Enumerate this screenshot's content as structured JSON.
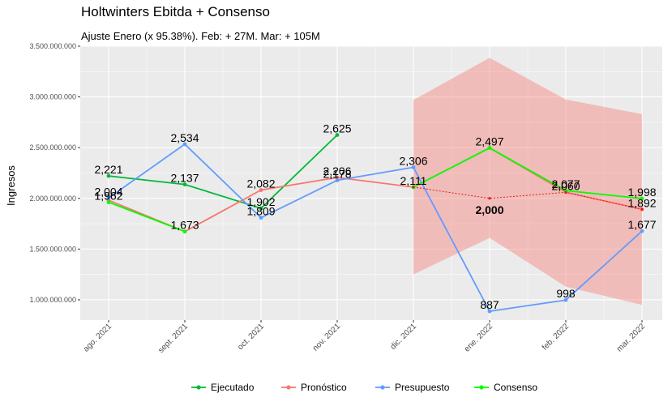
{
  "chart_data": {
    "type": "line",
    "title": "Holtwinters Ebitda + Consenso",
    "subtitle": "Ajuste Enero (x 95.38%). Feb: + 27M. Mar: + 105M",
    "ylabel": "Ingresos",
    "xlabel": "",
    "categories": [
      "ago. 2021",
      "sept. 2021",
      "oct. 2021",
      "nov. 2021",
      "dic. 2021",
      "ene. 2022",
      "feb. 2022",
      "mar. 2022"
    ],
    "ylim": [
      800000000,
      3500000000
    ],
    "yticks": [
      1000000000,
      1500000000,
      2000000000,
      2500000000,
      3000000000,
      3500000000
    ],
    "ytick_labels": [
      "1.000.000.000",
      "1.500.000.000",
      "2.000.000.000",
      "2.500.000.000",
      "3.000.000.000",
      "3.500.000.000"
    ],
    "grid": true,
    "legend_position": "bottom",
    "series": [
      {
        "name": "Ejecutado",
        "color": "#00ba38",
        "values": [
          2221,
          2137,
          1902,
          2625,
          null,
          null,
          null,
          null
        ],
        "labels": [
          "2,221",
          "2,137",
          "1,902",
          "2,625",
          "",
          "",
          "",
          ""
        ]
      },
      {
        "name": "Pronóstico",
        "color": "#f8766d",
        "values": [
          1982,
          1673,
          2082,
          2206,
          2111,
          2497,
          2060,
          1892
        ],
        "labels": [
          "",
          "",
          "2,082",
          "2,206",
          "",
          "",
          "2,060",
          "1,892"
        ]
      },
      {
        "name": "Presupuesto",
        "color": "#619cff",
        "values": [
          2004,
          2534,
          1809,
          2178,
          2306,
          887,
          998,
          1677
        ],
        "labels": [
          "2,004",
          "2,534",
          "1,809",
          "2,178",
          "2,306",
          "887",
          "998",
          "1,677"
        ]
      },
      {
        "name": "Consenso",
        "color": "#00ff00",
        "values": [
          1962,
          1673,
          null,
          null,
          2111,
          2497,
          2077,
          1998
        ],
        "labels": [
          "1,962",
          "1,673",
          "",
          "",
          "2,111",
          "2,497",
          "2,077",
          "1,998"
        ]
      }
    ],
    "forecast_band": {
      "start_index": 4,
      "lower": [
        1250,
        1610,
        1130,
        950
      ],
      "upper": [
        2970,
        3385,
        2975,
        2830
      ],
      "fill": "#f8766d"
    },
    "adjusted_line": {
      "color": "#e41a1c",
      "values": [
        2111,
        2000,
        2060,
        1892
      ]
    },
    "annotation": {
      "index": 5,
      "value": 2000,
      "label": "2,000"
    }
  }
}
